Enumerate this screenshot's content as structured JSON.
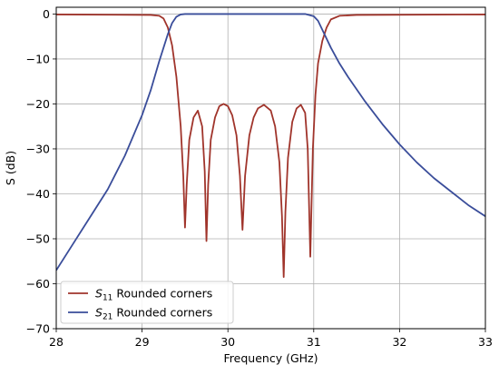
{
  "chart_data": {
    "type": "line",
    "title": "",
    "xlabel": "Frequency (GHz)",
    "ylabel": "S (dB)",
    "xlim": [
      28,
      33
    ],
    "ylim": [
      -70,
      1.5
    ],
    "x_ticks": [
      28,
      29,
      30,
      31,
      32,
      33
    ],
    "y_ticks": [
      0,
      -10,
      -20,
      -30,
      -40,
      -50,
      -60,
      -70
    ],
    "grid": true,
    "legend_position": "lower-left",
    "series": [
      {
        "name_main": "S",
        "name_sub": "11",
        "name_rest": " Rounded corners",
        "color": "#a0342b",
        "points": [
          [
            28.0,
            -0.1
          ],
          [
            29.1,
            -0.2
          ],
          [
            29.2,
            -0.4
          ],
          [
            29.25,
            -1
          ],
          [
            29.3,
            -3
          ],
          [
            29.35,
            -7
          ],
          [
            29.4,
            -14
          ],
          [
            29.45,
            -25
          ],
          [
            29.48,
            -36
          ],
          [
            29.5,
            -47.5
          ],
          [
            29.52,
            -38
          ],
          [
            29.55,
            -28
          ],
          [
            29.6,
            -23
          ],
          [
            29.65,
            -21.5
          ],
          [
            29.7,
            -25
          ],
          [
            29.73,
            -35
          ],
          [
            29.75,
            -50.5
          ],
          [
            29.77,
            -38
          ],
          [
            29.8,
            -28
          ],
          [
            29.85,
            -23
          ],
          [
            29.9,
            -20.5
          ],
          [
            29.95,
            -20
          ],
          [
            30.0,
            -20.5
          ],
          [
            30.05,
            -22.5
          ],
          [
            30.1,
            -27
          ],
          [
            30.14,
            -36
          ],
          [
            30.17,
            -48
          ],
          [
            30.2,
            -36
          ],
          [
            30.25,
            -27
          ],
          [
            30.3,
            -23
          ],
          [
            30.35,
            -21
          ],
          [
            30.42,
            -20.2
          ],
          [
            30.5,
            -21.5
          ],
          [
            30.55,
            -25
          ],
          [
            30.6,
            -33
          ],
          [
            30.63,
            -45
          ],
          [
            30.65,
            -58.5
          ],
          [
            30.67,
            -44
          ],
          [
            30.7,
            -32
          ],
          [
            30.75,
            -24
          ],
          [
            30.8,
            -21
          ],
          [
            30.85,
            -20.2
          ],
          [
            30.9,
            -22
          ],
          [
            30.93,
            -30
          ],
          [
            30.96,
            -54
          ],
          [
            30.99,
            -30
          ],
          [
            31.02,
            -18
          ],
          [
            31.05,
            -11
          ],
          [
            31.1,
            -6
          ],
          [
            31.15,
            -3
          ],
          [
            31.2,
            -1.2
          ],
          [
            31.3,
            -0.4
          ],
          [
            31.5,
            -0.2
          ],
          [
            33.0,
            -0.1
          ]
        ]
      },
      {
        "name_main": "S",
        "name_sub": "21",
        "name_rest": " Rounded corners",
        "color": "#3a4d9a",
        "points": [
          [
            28.0,
            -57
          ],
          [
            28.2,
            -51
          ],
          [
            28.4,
            -45
          ],
          [
            28.6,
            -39
          ],
          [
            28.8,
            -31.5
          ],
          [
            29.0,
            -22.5
          ],
          [
            29.1,
            -17
          ],
          [
            29.2,
            -10.5
          ],
          [
            29.3,
            -4.5
          ],
          [
            29.35,
            -2
          ],
          [
            29.4,
            -0.6
          ],
          [
            29.45,
            -0.1
          ],
          [
            29.5,
            0
          ],
          [
            30.0,
            0
          ],
          [
            30.5,
            0
          ],
          [
            30.9,
            0
          ],
          [
            31.0,
            -0.5
          ],
          [
            31.05,
            -1.5
          ],
          [
            31.1,
            -3.5
          ],
          [
            31.2,
            -7.5
          ],
          [
            31.3,
            -11
          ],
          [
            31.4,
            -14
          ],
          [
            31.6,
            -19.5
          ],
          [
            31.8,
            -24.5
          ],
          [
            32.0,
            -29
          ],
          [
            32.2,
            -33
          ],
          [
            32.4,
            -36.5
          ],
          [
            32.6,
            -39.5
          ],
          [
            32.8,
            -42.5
          ],
          [
            33.0,
            -45
          ]
        ]
      }
    ]
  }
}
